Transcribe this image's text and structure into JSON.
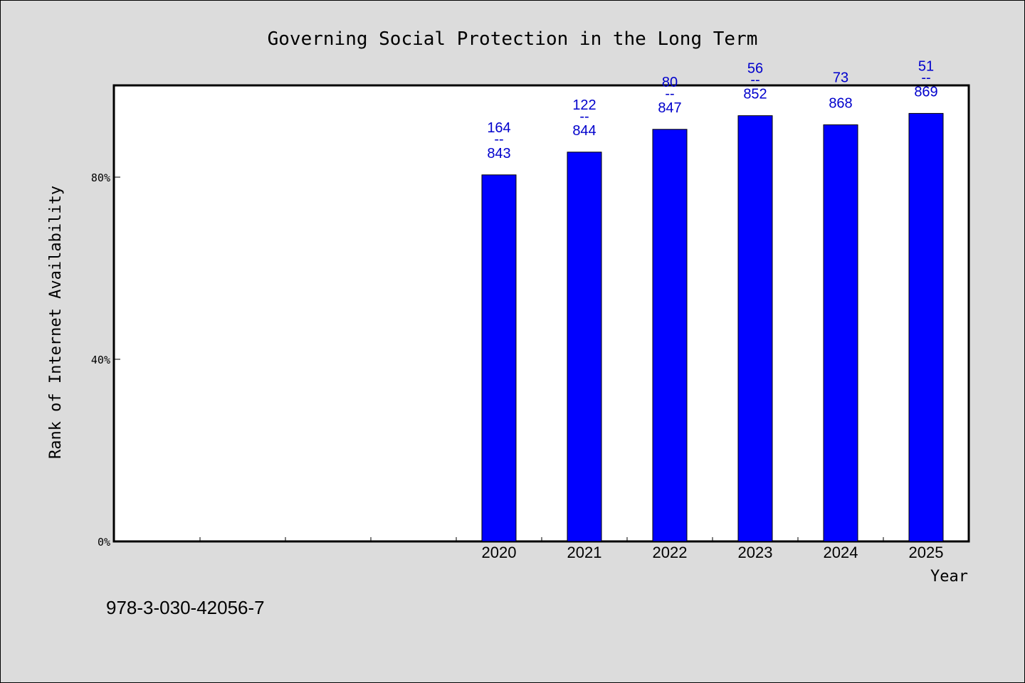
{
  "chart_data": {
    "type": "bar",
    "title": "Governing Social Protection in the Long Term",
    "xlabel": "Year",
    "ylabel": "Rank of Internet Availability",
    "categories": [
      "",
      "",
      "",
      "",
      "2020",
      "2021",
      "2022",
      "2023",
      "2024",
      "2025"
    ],
    "values": [
      null,
      null,
      null,
      null,
      80.5,
      85.5,
      90.5,
      93.5,
      91.5,
      94
    ],
    "bar_labels": [
      null,
      null,
      null,
      null,
      {
        "top": "164",
        "sep": "--",
        "bottom": "843"
      },
      {
        "top": "122",
        "sep": "--",
        "bottom": "844"
      },
      {
        "top": "80",
        "sep": "--",
        "bottom": "847"
      },
      {
        "top": "56",
        "sep": "--",
        "bottom": "852"
      },
      {
        "top": "73",
        "sep": "",
        "bottom": "868"
      },
      {
        "top": "51",
        "sep": "--",
        "bottom": "869"
      }
    ],
    "yticks": [
      0,
      40,
      80
    ],
    "ytick_labels": [
      "0%",
      "40%",
      "80%"
    ],
    "ylim": [
      0,
      100
    ],
    "grid": false,
    "legend": "none"
  },
  "footer_text": "978-3-030-42056-7",
  "colors": {
    "background": "#dcdcdc",
    "plot_background": "#ffffff",
    "bar": "#0000ff",
    "bar_label": "#0000cc",
    "text": "#000000"
  }
}
